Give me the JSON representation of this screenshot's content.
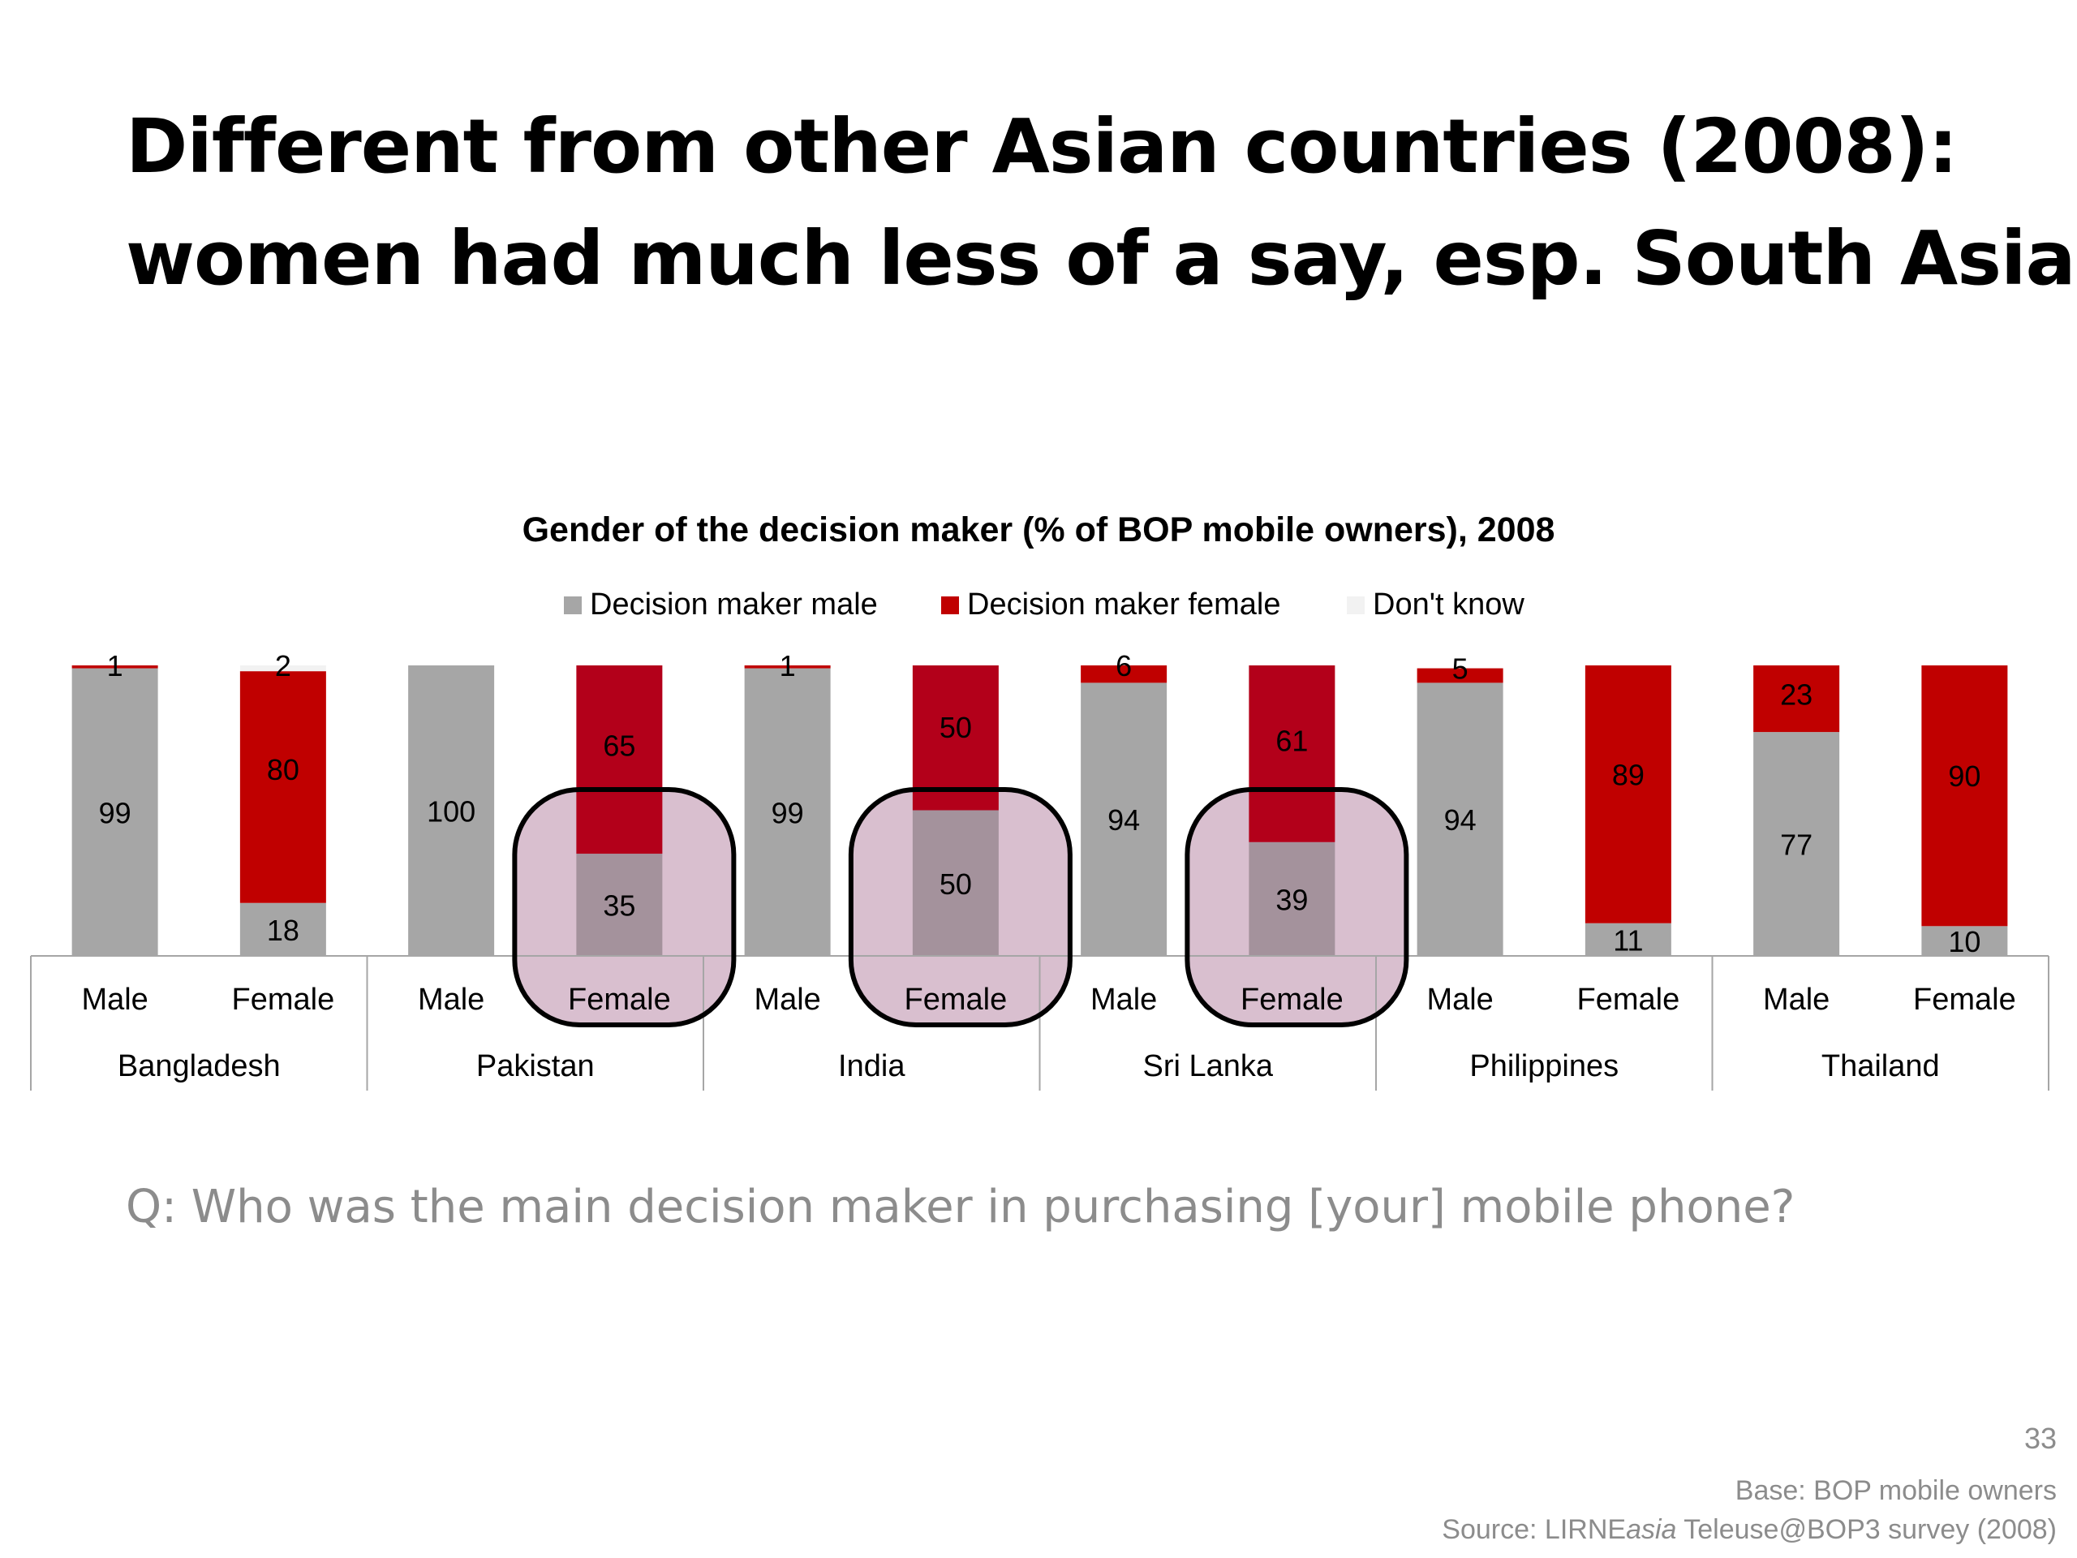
{
  "slide": {
    "title_line1": "Different from other Asian countries (2008):",
    "title_line2": "women had much less of a say, esp. South Asia",
    "question": "Q: Who was the main decision maker in purchasing [your] mobile phone?",
    "page_number": "33",
    "base_note": "Base: BOP mobile owners",
    "source_prefix": "Source: LIRNE",
    "source_italic": "asia",
    "source_suffix": " Teleuse@BOP3 survey (2008)"
  },
  "chart_data": {
    "type": "bar",
    "stacked": true,
    "title": "Gender of the decision maker (% of BOP mobile owners), 2008",
    "legend_position": "top",
    "ylim": [
      0,
      100
    ],
    "grid": false,
    "groups": [
      "Bangladesh",
      "Pakistan",
      "India",
      "Sri Lanka",
      "Philippines",
      "Thailand"
    ],
    "sub_categories": [
      "Male",
      "Female"
    ],
    "categories": [
      "Male",
      "Female",
      "Male",
      "Female",
      "Male",
      "Female",
      "Male",
      "Female",
      "Male",
      "Female",
      "Male",
      "Female"
    ],
    "series": [
      {
        "name": "Decision maker male",
        "color": "#a6a6a6",
        "values": [
          99,
          18,
          100,
          35,
          99,
          50,
          94,
          39,
          94,
          11,
          77,
          10
        ],
        "labels": [
          "99",
          "18",
          "100",
          "35",
          "99",
          "50",
          "94",
          "39",
          "94",
          "11",
          "77",
          "10"
        ]
      },
      {
        "name": "Decision maker female",
        "color": "#c00000",
        "values": [
          1,
          80,
          0,
          65,
          1,
          50,
          6,
          61,
          5,
          89,
          23,
          90
        ],
        "labels": [
          "1",
          "80",
          "",
          "65",
          "1",
          "50",
          "6",
          "61",
          "5",
          "89",
          "23",
          "90"
        ]
      },
      {
        "name": "Don't know",
        "color": "#f2f2f2",
        "values": [
          0,
          2,
          0,
          0,
          0,
          0,
          0,
          0,
          0,
          0,
          0,
          0
        ],
        "labels": [
          "",
          "2",
          "",
          "",
          "",
          "",
          "",
          "",
          "",
          "",
          "",
          ""
        ]
      }
    ],
    "highlighted": [
      {
        "group": "Pakistan",
        "bar": "Female"
      },
      {
        "group": "India",
        "bar": "Female"
      },
      {
        "group": "Sri Lanka",
        "bar": "Female"
      }
    ],
    "highlight_color": "#d9bfcf"
  }
}
